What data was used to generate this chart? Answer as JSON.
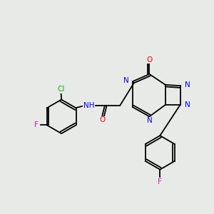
{
  "bg_color": "#e8eae8",
  "bond_color": "#000000",
  "colors": {
    "N": "#0000ff",
    "O": "#ff0000",
    "F": "#ff00cc",
    "Cl": "#00bb00",
    "C": "#000000"
  },
  "lw": 1.3,
  "fs": 7.5,
  "ring_r": 0.72
}
